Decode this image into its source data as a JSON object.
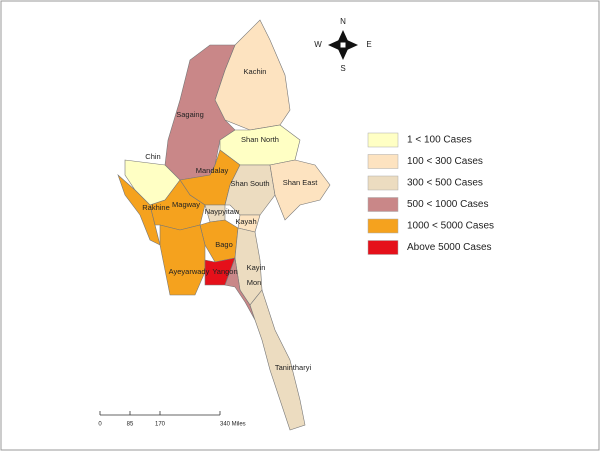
{
  "map": {
    "regions": [
      {
        "name": "Kachin",
        "color": "#fde3c0"
      },
      {
        "name": "Sagaing",
        "color": "#c98788"
      },
      {
        "name": "Shan North",
        "color": "#ffffc4"
      },
      {
        "name": "Chin",
        "color": "#ffffc4"
      },
      {
        "name": "Mandalay",
        "color": "#f5a21e"
      },
      {
        "name": "Shan South",
        "color": "#ecdcc0"
      },
      {
        "name": "Shan East",
        "color": "#fde3c0"
      },
      {
        "name": "Rakhine",
        "color": "#f5a21e"
      },
      {
        "name": "Magway",
        "color": "#f5a21e"
      },
      {
        "name": "Naypyitaw",
        "color": "#ecdcc0"
      },
      {
        "name": "Kayah",
        "color": "#fde3c0"
      },
      {
        "name": "Bago",
        "color": "#f5a21e"
      },
      {
        "name": "Ayeyarwady",
        "color": "#f5a21e"
      },
      {
        "name": "Yangon",
        "color": "#e5101a"
      },
      {
        "name": "Kayin",
        "color": "#ecdcc0"
      },
      {
        "name": "Mon",
        "color": "#c98788"
      },
      {
        "name": "Tanintharyi",
        "color": "#ecdcc0"
      }
    ],
    "legend": [
      {
        "label": "1 < 100 Cases",
        "color": "#ffffc4"
      },
      {
        "label": "100 < 300 Cases",
        "color": "#fde3c0"
      },
      {
        "label": "300 < 500 Cases",
        "color": "#ecdcc0"
      },
      {
        "label": "500 < 1000 Cases",
        "color": "#c98788"
      },
      {
        "label": "1000 < 5000 Cases",
        "color": "#f5a21e"
      },
      {
        "label": "Above 5000 Cases",
        "color": "#e5101a"
      }
    ],
    "compass": {
      "n": "N",
      "s": "S",
      "e": "E",
      "w": "W"
    },
    "scale_bar": {
      "lim": [
        0,
        340
      ],
      "ticks": [
        0,
        85,
        170,
        {
          "value": 340,
          "label": "340 Miles"
        }
      ]
    }
  }
}
